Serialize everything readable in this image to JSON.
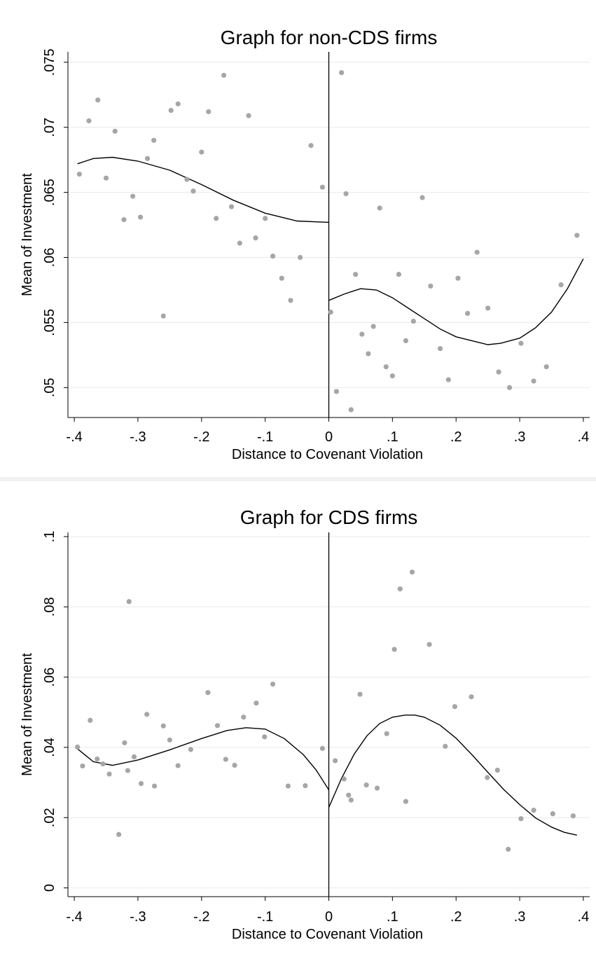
{
  "chart_data": [
    {
      "type": "scatter",
      "title": "Graph for non-CDS firms",
      "xlabel": "Distance to Covenant Violation",
      "ylabel": "Mean of Investment",
      "xlim": [
        -0.41,
        0.41
      ],
      "ylim": [
        0.0477,
        0.0758
      ],
      "x_ticks": [
        -0.4,
        -0.3,
        -0.2,
        -0.1,
        0,
        0.1,
        0.2,
        0.3,
        0.4
      ],
      "x_tick_labels": [
        "-.4",
        "-.3",
        "-.2",
        "-.1",
        "0",
        ".1",
        ".2",
        ".3",
        ".4"
      ],
      "y_ticks": [
        0.05,
        0.055,
        0.06,
        0.065,
        0.07,
        0.075
      ],
      "y_tick_labels": [
        ".05",
        ".055",
        ".06",
        ".065",
        ".07",
        ".075"
      ],
      "grid": true,
      "cutoff": 0,
      "point_color": "#a6a6a6",
      "line_color": "#000000",
      "points": [
        [
          -0.392,
          0.0664
        ],
        [
          -0.377,
          0.0705
        ],
        [
          -0.363,
          0.0721
        ],
        [
          -0.35,
          0.0661
        ],
        [
          -0.336,
          0.0697
        ],
        [
          -0.322,
          0.0629
        ],
        [
          -0.308,
          0.0647
        ],
        [
          -0.296,
          0.0631
        ],
        [
          -0.285,
          0.0676
        ],
        [
          -0.275,
          0.069
        ],
        [
          -0.26,
          0.0555
        ],
        [
          -0.248,
          0.0713
        ],
        [
          -0.237,
          0.0718
        ],
        [
          -0.223,
          0.066
        ],
        [
          -0.213,
          0.0651
        ],
        [
          -0.2,
          0.0681
        ],
        [
          -0.189,
          0.0712
        ],
        [
          -0.177,
          0.063
        ],
        [
          -0.165,
          0.074
        ],
        [
          -0.153,
          0.0639
        ],
        [
          -0.14,
          0.0611
        ],
        [
          -0.126,
          0.0709
        ],
        [
          -0.115,
          0.0615
        ],
        [
          -0.1,
          0.063
        ],
        [
          -0.088,
          0.0601
        ],
        [
          -0.074,
          0.0584
        ],
        [
          -0.06,
          0.0567
        ],
        [
          -0.045,
          0.06
        ],
        [
          -0.028,
          0.0686
        ],
        [
          -0.01,
          0.0654
        ],
        [
          0.003,
          0.0558
        ],
        [
          0.012,
          0.0497
        ],
        [
          0.02,
          0.0742
        ],
        [
          0.027,
          0.0649
        ],
        [
          0.035,
          0.0483
        ],
        [
          0.042,
          0.0587
        ],
        [
          0.052,
          0.0541
        ],
        [
          0.062,
          0.0526
        ],
        [
          0.07,
          0.0547
        ],
        [
          0.08,
          0.0638
        ],
        [
          0.09,
          0.0516
        ],
        [
          0.1,
          0.0509
        ],
        [
          0.11,
          0.0587
        ],
        [
          0.121,
          0.0536
        ],
        [
          0.133,
          0.0551
        ],
        [
          0.147,
          0.0646
        ],
        [
          0.16,
          0.0578
        ],
        [
          0.175,
          0.053
        ],
        [
          0.188,
          0.0506
        ],
        [
          0.203,
          0.0584
        ],
        [
          0.218,
          0.0557
        ],
        [
          0.233,
          0.0604
        ],
        [
          0.25,
          0.0561
        ],
        [
          0.267,
          0.0512
        ],
        [
          0.284,
          0.05
        ],
        [
          0.302,
          0.0534
        ],
        [
          0.322,
          0.0505
        ],
        [
          0.342,
          0.0516
        ],
        [
          0.365,
          0.0579
        ],
        [
          0.39,
          0.0617
        ]
      ],
      "fit_left": [
        [
          -0.395,
          0.0672
        ],
        [
          -0.37,
          0.0676
        ],
        [
          -0.34,
          0.0677
        ],
        [
          -0.3,
          0.0674
        ],
        [
          -0.25,
          0.0667
        ],
        [
          -0.2,
          0.0656
        ],
        [
          -0.15,
          0.0644
        ],
        [
          -0.1,
          0.0634
        ],
        [
          -0.05,
          0.0628
        ],
        [
          0,
          0.0627
        ]
      ],
      "fit_right": [
        [
          0,
          0.0567
        ],
        [
          0.025,
          0.0572
        ],
        [
          0.05,
          0.0576
        ],
        [
          0.075,
          0.0575
        ],
        [
          0.1,
          0.0569
        ],
        [
          0.125,
          0.0561
        ],
        [
          0.15,
          0.0553
        ],
        [
          0.175,
          0.0545
        ],
        [
          0.2,
          0.0539
        ],
        [
          0.225,
          0.0536
        ],
        [
          0.25,
          0.0533
        ],
        [
          0.27,
          0.0534
        ],
        [
          0.3,
          0.0538
        ],
        [
          0.325,
          0.0546
        ],
        [
          0.35,
          0.0558
        ],
        [
          0.375,
          0.0576
        ],
        [
          0.4,
          0.0599
        ]
      ]
    },
    {
      "type": "scatter",
      "title": "Graph for CDS firms",
      "xlabel": "Distance to Covenant Violation",
      "ylabel": "Mean of Investment",
      "xlim": [
        -0.41,
        0.41
      ],
      "ylim": [
        -0.0025,
        0.1012
      ],
      "x_ticks": [
        -0.4,
        -0.3,
        -0.2,
        -0.1,
        0,
        0.1,
        0.2,
        0.3,
        0.4
      ],
      "x_tick_labels": [
        "-.4",
        "-.3",
        "-.2",
        "-.1",
        "0",
        ".1",
        ".2",
        ".3",
        ".4"
      ],
      "y_ticks": [
        0,
        0.02,
        0.04,
        0.06,
        0.08,
        0.1
      ],
      "y_tick_labels": [
        "0",
        ".02",
        ".04",
        ".06",
        ".08",
        ".1"
      ],
      "grid": true,
      "cutoff": 0,
      "point_color": "#a6a6a6",
      "line_color": "#000000",
      "points": [
        [
          -0.395,
          0.0401
        ],
        [
          -0.387,
          0.0347
        ],
        [
          -0.375,
          0.0477
        ],
        [
          -0.364,
          0.0367
        ],
        [
          -0.355,
          0.0353
        ],
        [
          -0.345,
          0.0324
        ],
        [
          -0.33,
          0.0152
        ],
        [
          -0.321,
          0.0413
        ],
        [
          -0.316,
          0.0334
        ],
        [
          -0.314,
          0.0815
        ],
        [
          -0.306,
          0.0373
        ],
        [
          -0.295,
          0.0297
        ],
        [
          -0.286,
          0.0494
        ],
        [
          -0.274,
          0.029
        ],
        [
          -0.26,
          0.0461
        ],
        [
          -0.25,
          0.0421
        ],
        [
          -0.237,
          0.0348
        ],
        [
          -0.217,
          0.0394
        ],
        [
          -0.19,
          0.0556
        ],
        [
          -0.175,
          0.0462
        ],
        [
          -0.162,
          0.0366
        ],
        [
          -0.148,
          0.0349
        ],
        [
          -0.134,
          0.0486
        ],
        [
          -0.114,
          0.0526
        ],
        [
          -0.101,
          0.043
        ],
        [
          -0.088,
          0.058
        ],
        [
          -0.064,
          0.029
        ],
        [
          -0.037,
          0.0291
        ],
        [
          -0.01,
          0.0397
        ],
        [
          0.01,
          0.0362
        ],
        [
          0.024,
          0.031
        ],
        [
          0.031,
          0.0264
        ],
        [
          0.035,
          0.025
        ],
        [
          0.049,
          0.0551
        ],
        [
          0.059,
          0.0293
        ],
        [
          0.076,
          0.0284
        ],
        [
          0.091,
          0.0439
        ],
        [
          0.103,
          0.0679
        ],
        [
          0.112,
          0.0851
        ],
        [
          0.121,
          0.0246
        ],
        [
          0.131,
          0.0899
        ],
        [
          0.158,
          0.0693
        ],
        [
          0.183,
          0.0403
        ],
        [
          0.198,
          0.0516
        ],
        [
          0.224,
          0.0544
        ],
        [
          0.249,
          0.0314
        ],
        [
          0.265,
          0.0335
        ],
        [
          0.282,
          0.011
        ],
        [
          0.302,
          0.0197
        ],
        [
          0.322,
          0.0221
        ],
        [
          0.352,
          0.0211
        ],
        [
          0.384,
          0.0205
        ]
      ],
      "fit_left": [
        [
          -0.395,
          0.0396
        ],
        [
          -0.37,
          0.0359
        ],
        [
          -0.34,
          0.0349
        ],
        [
          -0.3,
          0.0364
        ],
        [
          -0.25,
          0.0393
        ],
        [
          -0.2,
          0.0425
        ],
        [
          -0.16,
          0.0448
        ],
        [
          -0.13,
          0.0456
        ],
        [
          -0.1,
          0.0452
        ],
        [
          -0.07,
          0.0425
        ],
        [
          -0.04,
          0.0379
        ],
        [
          -0.02,
          0.0336
        ],
        [
          0,
          0.0279
        ]
      ],
      "fit_right": [
        [
          0,
          0.0229
        ],
        [
          0.02,
          0.0312
        ],
        [
          0.04,
          0.0381
        ],
        [
          0.06,
          0.0433
        ],
        [
          0.08,
          0.0468
        ],
        [
          0.1,
          0.0486
        ],
        [
          0.12,
          0.0492
        ],
        [
          0.135,
          0.0492
        ],
        [
          0.15,
          0.0486
        ],
        [
          0.175,
          0.0463
        ],
        [
          0.2,
          0.0426
        ],
        [
          0.225,
          0.0379
        ],
        [
          0.25,
          0.0329
        ],
        [
          0.275,
          0.028
        ],
        [
          0.3,
          0.0237
        ],
        [
          0.325,
          0.0199
        ],
        [
          0.35,
          0.0173
        ],
        [
          0.37,
          0.0158
        ],
        [
          0.39,
          0.015
        ]
      ]
    }
  ]
}
